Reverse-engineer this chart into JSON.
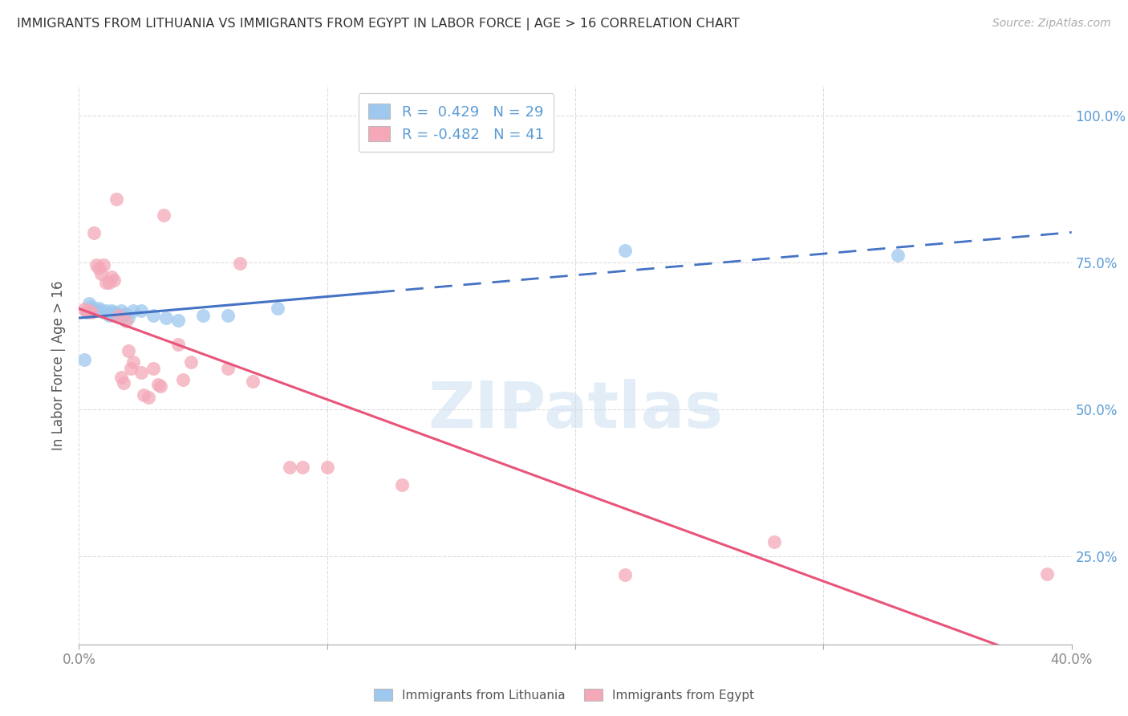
{
  "title": "IMMIGRANTS FROM LITHUANIA VS IMMIGRANTS FROM EGYPT IN LABOR FORCE | AGE > 16 CORRELATION CHART",
  "source": "Source: ZipAtlas.com",
  "ylabel_label": "In Labor Force | Age > 16",
  "xmin": 0.0,
  "xmax": 0.4,
  "ymin": 0.1,
  "ymax": 1.05,
  "ytick_values": [
    0.25,
    0.5,
    0.75,
    1.0
  ],
  "xtick_values": [
    0.0,
    0.1,
    0.2,
    0.3,
    0.4
  ],
  "xtick_show": [
    0.0,
    0.4
  ],
  "lithuania_R": 0.429,
  "lithuania_N": 29,
  "egypt_R": -0.482,
  "egypt_N": 41,
  "lithuania_color": "#9EC8EE",
  "egypt_color": "#F4A8B8",
  "lithuania_line_color": "#4472C4",
  "egypt_line_color": "#E8547A",
  "lithuania_line_solid_end": 0.12,
  "lithuania_dots": [
    [
      0.002,
      0.585
    ],
    [
      0.003,
      0.665
    ],
    [
      0.004,
      0.68
    ],
    [
      0.005,
      0.675
    ],
    [
      0.006,
      0.67
    ],
    [
      0.007,
      0.668
    ],
    [
      0.008,
      0.672
    ],
    [
      0.009,
      0.668
    ],
    [
      0.01,
      0.665
    ],
    [
      0.011,
      0.668
    ],
    [
      0.012,
      0.66
    ],
    [
      0.013,
      0.668
    ],
    [
      0.014,
      0.665
    ],
    [
      0.015,
      0.662
    ],
    [
      0.016,
      0.66
    ],
    [
      0.017,
      0.668
    ],
    [
      0.018,
      0.66
    ],
    [
      0.019,
      0.662
    ],
    [
      0.02,
      0.655
    ],
    [
      0.022,
      0.668
    ],
    [
      0.025,
      0.668
    ],
    [
      0.03,
      0.66
    ],
    [
      0.035,
      0.655
    ],
    [
      0.04,
      0.652
    ],
    [
      0.05,
      0.66
    ],
    [
      0.06,
      0.66
    ],
    [
      0.08,
      0.672
    ],
    [
      0.22,
      0.77
    ],
    [
      0.33,
      0.762
    ]
  ],
  "egypt_dots": [
    [
      0.002,
      0.67
    ],
    [
      0.003,
      0.668
    ],
    [
      0.004,
      0.668
    ],
    [
      0.005,
      0.665
    ],
    [
      0.006,
      0.8
    ],
    [
      0.007,
      0.745
    ],
    [
      0.008,
      0.74
    ],
    [
      0.009,
      0.73
    ],
    [
      0.01,
      0.745
    ],
    [
      0.011,
      0.715
    ],
    [
      0.012,
      0.715
    ],
    [
      0.013,
      0.725
    ],
    [
      0.014,
      0.72
    ],
    [
      0.015,
      0.858
    ],
    [
      0.016,
      0.66
    ],
    [
      0.017,
      0.555
    ],
    [
      0.018,
      0.545
    ],
    [
      0.019,
      0.65
    ],
    [
      0.02,
      0.6
    ],
    [
      0.021,
      0.57
    ],
    [
      0.022,
      0.58
    ],
    [
      0.025,
      0.562
    ],
    [
      0.026,
      0.525
    ],
    [
      0.028,
      0.52
    ],
    [
      0.03,
      0.57
    ],
    [
      0.032,
      0.542
    ],
    [
      0.033,
      0.54
    ],
    [
      0.034,
      0.83
    ],
    [
      0.04,
      0.61
    ],
    [
      0.042,
      0.55
    ],
    [
      0.045,
      0.58
    ],
    [
      0.06,
      0.57
    ],
    [
      0.065,
      0.748
    ],
    [
      0.07,
      0.548
    ],
    [
      0.085,
      0.402
    ],
    [
      0.09,
      0.402
    ],
    [
      0.1,
      0.402
    ],
    [
      0.13,
      0.372
    ],
    [
      0.22,
      0.218
    ],
    [
      0.28,
      0.275
    ],
    [
      0.39,
      0.22
    ]
  ],
  "watermark_text": "ZIPatlas",
  "background_color": "#FFFFFF",
  "grid_color": "#DDDDDD"
}
